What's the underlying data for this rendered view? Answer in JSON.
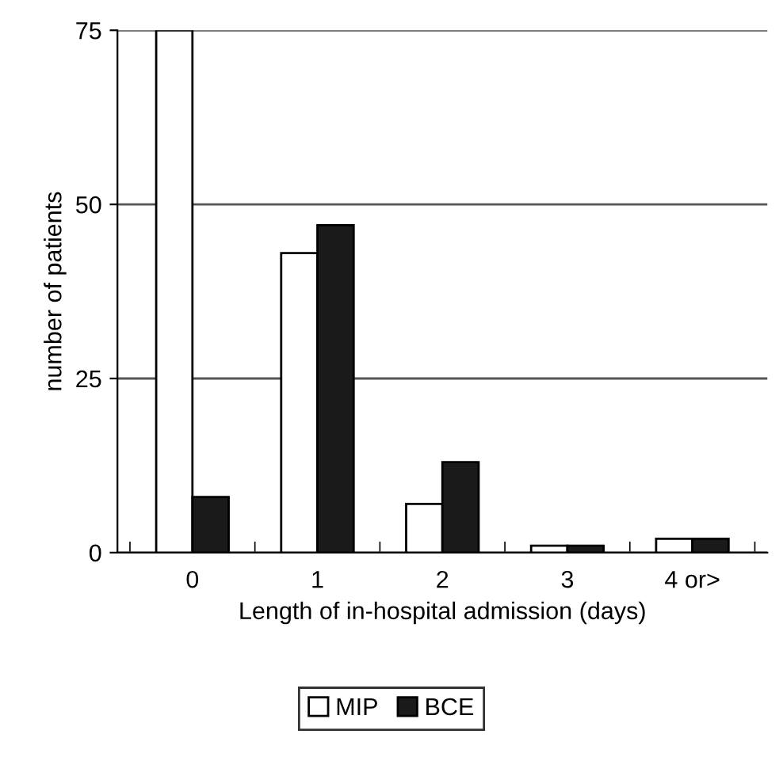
{
  "chart_data": {
    "type": "bar",
    "xlabel": "Length of in-hospital admission (days)",
    "ylabel": "number of patients",
    "categories": [
      "0",
      "1",
      "2",
      "3",
      "4 or>"
    ],
    "series": [
      {
        "name": "MIP",
        "color": "#ffffff",
        "values": [
          75,
          43,
          7,
          1,
          2
        ]
      },
      {
        "name": "BCE",
        "color": "#1a1a1a",
        "values": [
          8,
          47,
          13,
          1,
          2
        ]
      }
    ],
    "ylim": [
      0,
      75
    ],
    "yticks": [
      0,
      25,
      50,
      75
    ],
    "grid": "y",
    "legend": "bottom"
  }
}
